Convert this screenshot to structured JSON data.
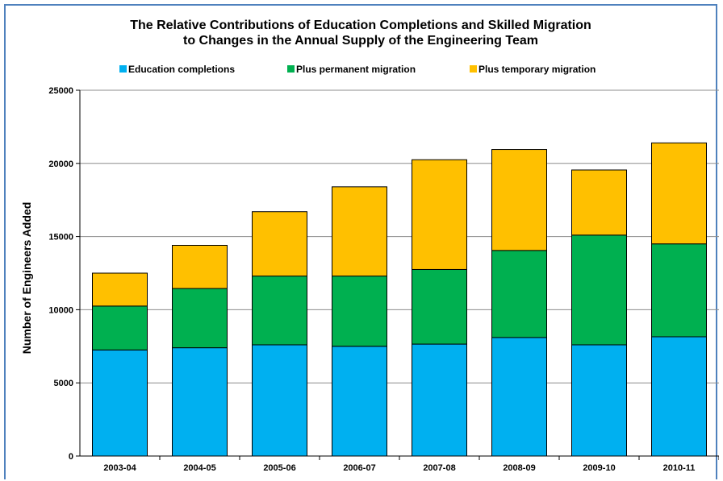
{
  "chart_data": {
    "type": "bar",
    "stacked": true,
    "title_lines": [
      "The Relative Contributions of Education Completions and Skilled Migration",
      "to Changes in the Annual Supply of the Engineering Team"
    ],
    "xlabel": "",
    "ylabel": "Number of Engineers Added",
    "ylim": [
      0,
      25000
    ],
    "yticks": [
      0,
      5000,
      10000,
      15000,
      20000,
      25000
    ],
    "grid": true,
    "legend_position": "top",
    "categories": [
      "2003-04",
      "2004-05",
      "2005-06",
      "2006-07",
      "2007-08",
      "2008-09",
      "2009-10",
      "2010-11"
    ],
    "series": [
      {
        "name": "Education completions",
        "color": "#00b0f0",
        "values": [
          7250,
          7400,
          7600,
          7500,
          7650,
          8100,
          7600,
          8150
        ]
      },
      {
        "name": "Plus permanent migration",
        "color": "#00b050",
        "values": [
          3000,
          4050,
          4700,
          4800,
          5100,
          5950,
          7500,
          6350
        ]
      },
      {
        "name": "Plus temporary migration",
        "color": "#ffc000",
        "values": [
          2250,
          2950,
          4400,
          6100,
          7500,
          6900,
          4450,
          6900
        ]
      }
    ]
  }
}
